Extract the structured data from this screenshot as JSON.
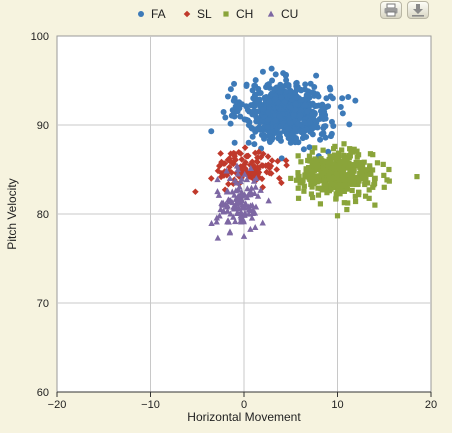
{
  "toolbar": {
    "print_icon": "printer-icon",
    "export_icon": "download-icon"
  },
  "colors": {
    "background": "#f6f3df",
    "plot_bg": "#ffffff",
    "grid": "#c8c8c8",
    "FA": "#3d7ab8",
    "SL": "#c0392b",
    "CH": "#8aa43a",
    "CU": "#7d67a3"
  },
  "chart_data": {
    "type": "scatter",
    "xlabel": "Horizontal Movement",
    "ylabel": "Pitch Velocity",
    "xlim": [
      -20,
      20
    ],
    "ylim": [
      60,
      100
    ],
    "xticks": [
      -20,
      -10,
      0,
      10,
      20
    ],
    "yticks": [
      60,
      70,
      80,
      90,
      100
    ],
    "xtick_labels": [
      "−20",
      "−10",
      "0",
      "10",
      "20"
    ],
    "ytick_labels": [
      "60",
      "70",
      "80",
      "90",
      "100"
    ],
    "grid": true,
    "legend_position": "top-center",
    "series": [
      {
        "name": "FA",
        "marker": "circle",
        "color": "#3d7ab8",
        "center": [
          4.5,
          91.5
        ],
        "spread": [
          2.3,
          1.6
        ],
        "count": 650,
        "sample_points": [
          [
            -1,
            93
          ],
          [
            -3.5,
            89.3
          ],
          [
            9.5,
            93
          ],
          [
            10.5,
            93
          ],
          [
            0.5,
            88
          ],
          [
            -1,
            88
          ],
          [
            2.5,
            94.5
          ],
          [
            7,
            87.5
          ],
          [
            8,
            86.5
          ],
          [
            3,
            95
          ],
          [
            5,
            88
          ],
          [
            9,
            87
          ]
        ]
      },
      {
        "name": "SL",
        "marker": "diamond",
        "color": "#c0392b",
        "center": [
          0.3,
          85.2
        ],
        "spread": [
          1.5,
          1.0
        ],
        "count": 110,
        "sample_points": [
          [
            -5.2,
            82.5
          ],
          [
            -3.5,
            84
          ],
          [
            3.5,
            85
          ],
          [
            4.5,
            86
          ],
          [
            2,
            83
          ],
          [
            -2.5,
            86.8
          ],
          [
            -1,
            86.5
          ],
          [
            1,
            84
          ],
          [
            4,
            83.5
          ],
          [
            3,
            86
          ]
        ]
      },
      {
        "name": "CH",
        "marker": "square",
        "color": "#8aa43a",
        "center": [
          10.0,
          84.5
        ],
        "spread": [
          1.9,
          1.2
        ],
        "count": 400,
        "sample_points": [
          [
            18.5,
            84.2
          ],
          [
            15.5,
            85
          ],
          [
            5,
            84
          ],
          [
            7,
            86.5
          ],
          [
            14,
            81
          ],
          [
            10,
            79.8
          ],
          [
            13,
            82
          ],
          [
            11,
            80.5
          ],
          [
            6,
            83.5
          ],
          [
            15,
            83
          ]
        ]
      },
      {
        "name": "CU",
        "marker": "triangle",
        "color": "#7d67a3",
        "center": [
          -0.5,
          81.5
        ],
        "spread": [
          1.2,
          1.5
        ],
        "count": 110,
        "sample_points": [
          [
            -2.8,
            77.3
          ],
          [
            -1.5,
            78
          ],
          [
            -1.5,
            84
          ],
          [
            1.5,
            82
          ],
          [
            2,
            79
          ],
          [
            -2.5,
            80.5
          ],
          [
            0,
            77.5
          ],
          [
            1.2,
            78.5
          ],
          [
            -0.8,
            83.5
          ],
          [
            0.5,
            80
          ]
        ]
      }
    ]
  }
}
